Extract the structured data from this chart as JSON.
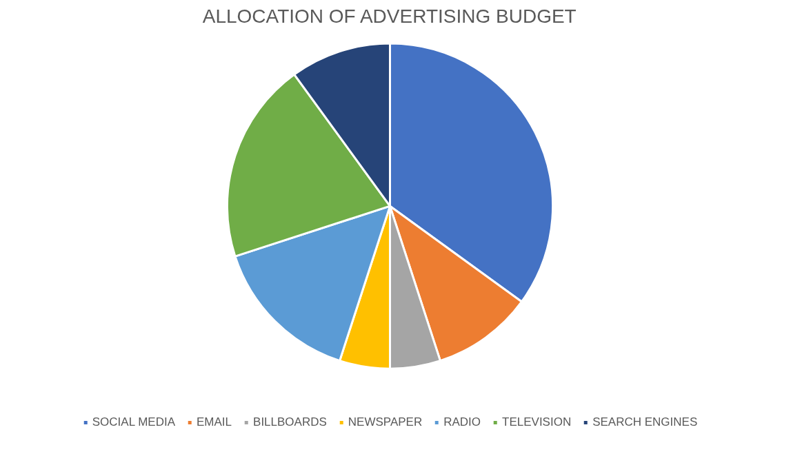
{
  "chart_data": {
    "type": "pie",
    "title": "ALLOCATION OF ADVERTISING BUDGET",
    "categories": [
      "SOCIAL MEDIA",
      "EMAIL",
      "BILLBOARDS",
      "NEWSPAPER",
      "RADIO",
      "TELEVISION",
      "SEARCH ENGINES"
    ],
    "values": [
      35,
      10,
      5,
      5,
      15,
      20,
      10
    ],
    "colors": [
      "#4472c4",
      "#ed7d31",
      "#a5a5a5",
      "#ffc000",
      "#5b9bd5",
      "#70ad47",
      "#264478"
    ],
    "legend": "bottom"
  }
}
